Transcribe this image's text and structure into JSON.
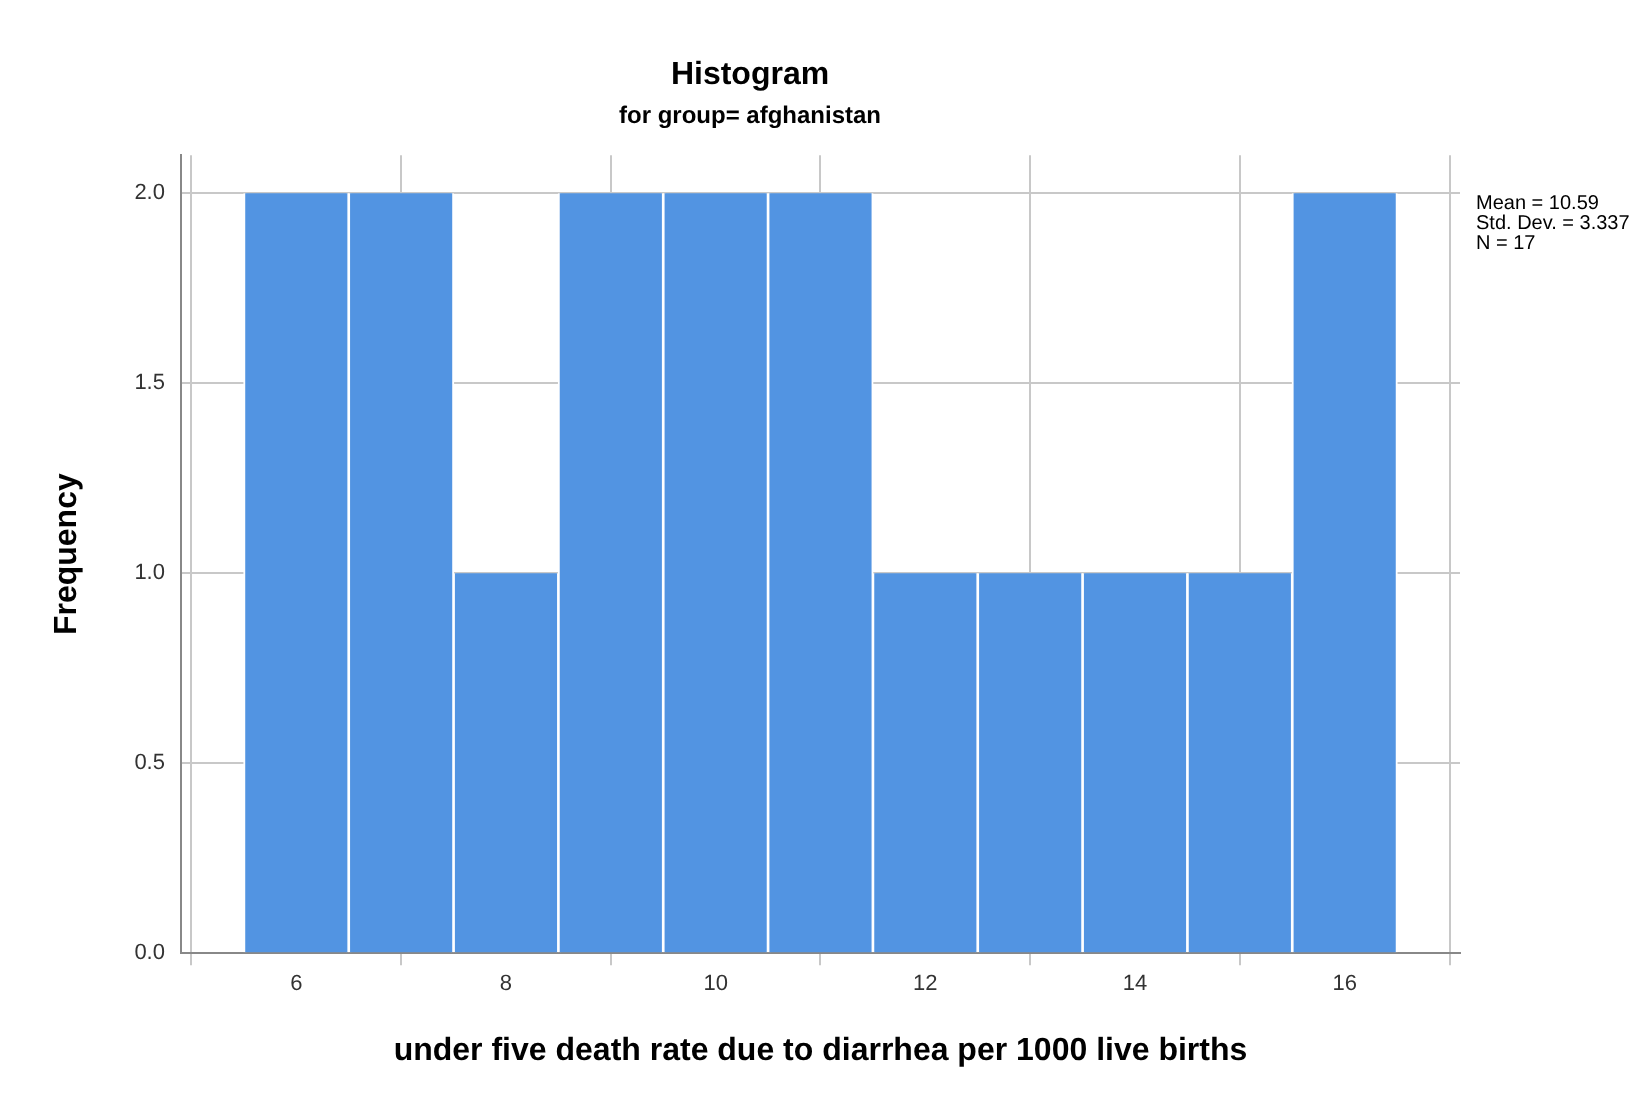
{
  "chart_data": {
    "type": "histogram",
    "title": "Histogram",
    "subtitle": "for group= afghanistan",
    "xlabel": "under five death rate due to diarrhea per 1000 live births",
    "ylabel": "Frequency",
    "bins": [
      5.5,
      6.5,
      7.5,
      8.5,
      9.5,
      10.5,
      11.5,
      12.5,
      13.5,
      14.5,
      15.5,
      16.5
    ],
    "values": [
      2,
      2,
      1,
      2,
      2,
      2,
      1,
      1,
      1,
      1,
      2
    ],
    "color": "#5294e2",
    "xlim": [
      4.9,
      17.1
    ],
    "xticks": [
      6,
      8,
      10,
      12,
      14,
      16
    ],
    "ylim": [
      0,
      2.1
    ],
    "yticks": [
      {
        "value": 0,
        "label": "0.0"
      },
      {
        "value": 0.5,
        "label": "0.5"
      },
      {
        "value": 1,
        "label": "1.0"
      },
      {
        "value": 1.5,
        "label": "1.5"
      },
      {
        "value": 2,
        "label": "2.0"
      }
    ],
    "grid": true,
    "annotations": [
      "Mean = 10.59",
      "Std. Dev. = 3.337",
      "N = 17"
    ]
  }
}
